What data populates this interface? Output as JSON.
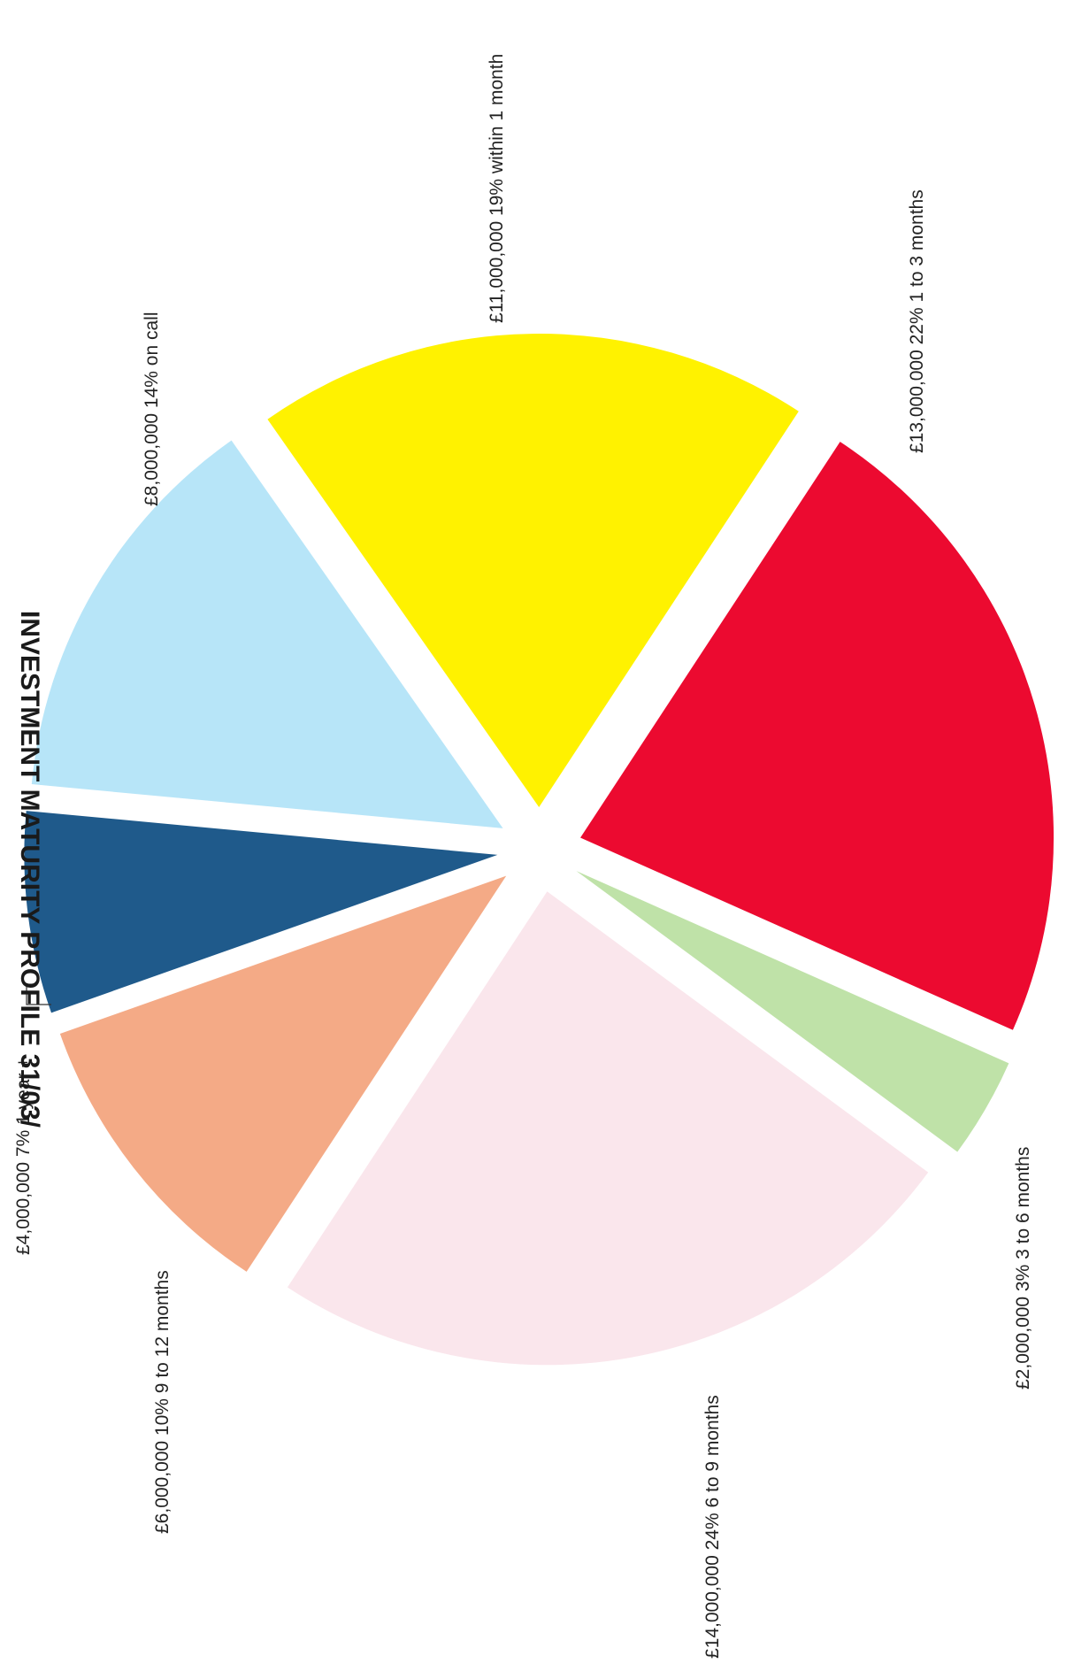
{
  "chart_data": {
    "type": "pie",
    "title": "INVESTMENT MATURITY PROFILE 31/03/",
    "exploded": true,
    "unit": "£",
    "slices": [
      {
        "category": "within 1 month",
        "amount": 11000000,
        "percent": 19,
        "label": "£11,000,000  19% within 1 month",
        "color": "#FFF200"
      },
      {
        "category": "1 to 3 months",
        "amount": 13000000,
        "percent": 22,
        "label": "£13,000,000  22% 1 to 3 months",
        "color": "#EC0A30"
      },
      {
        "category": "3 to 6 months",
        "amount": 2000000,
        "percent": 3,
        "label": "£2,000,000  3% 3 to 6 months",
        "color": "#BFE2A8"
      },
      {
        "category": "6 to 9 months",
        "amount": 14000000,
        "percent": 24,
        "label": "£14,000,000  24% 6 to 9 months",
        "color": "#FAE6EC"
      },
      {
        "category": "9 to 12 months",
        "amount": 6000000,
        "percent": 10,
        "label": "£6,000,000  10% 9 to 12 months",
        "color": "#F4AA86"
      },
      {
        "category": "1 year +",
        "amount": 4000000,
        "percent": 7,
        "label": "£4,000,000  7% 1 year +",
        "color": "#1F5A8B"
      },
      {
        "category": "on call",
        "amount": 8000000,
        "percent": 14,
        "label": "£8,000,000  14% on call",
        "color": "#B7E5F8"
      }
    ]
  }
}
